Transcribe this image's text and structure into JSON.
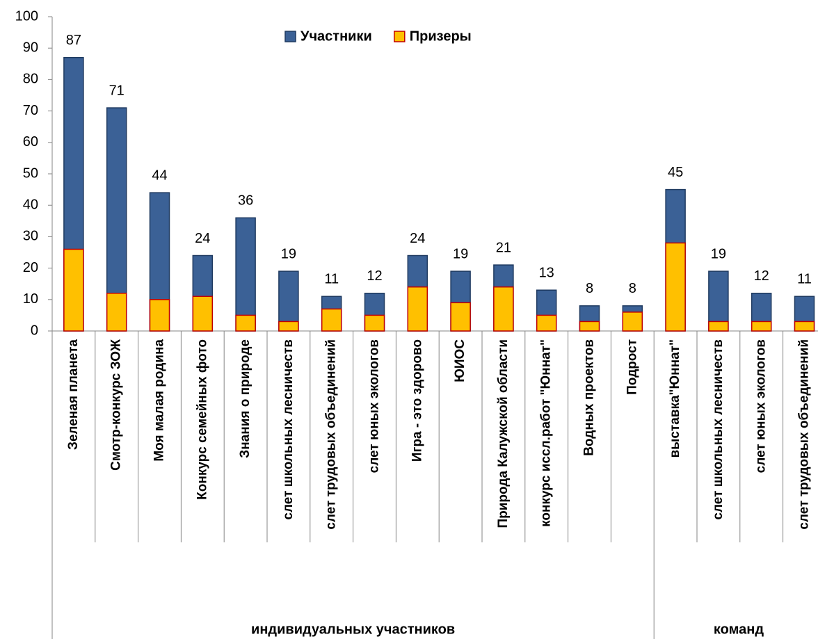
{
  "chart_data": {
    "type": "bar",
    "overlap": true,
    "groups": [
      {
        "name": "индивидуальных участников",
        "categories": [
          "Зеленая планета",
          "Смотр-конкурс ЗОЖ",
          "Моя малая родина",
          "Конкурс семейных фото",
          "Знания о природе",
          "слет школьных лесничеств",
          "слет трудовых объединений",
          "слет юных экологов",
          "Игра - это здорово",
          "ЮИОС",
          "Природа Калужской области",
          "конкурс иссл.работ \"Юннат\"",
          "Водных проектов",
          "Подрост"
        ]
      },
      {
        "name": "команд",
        "categories": [
          "выставка\"Юннат\"",
          "слет школьных лесничеств",
          "слет юных экологов",
          "слет трудовых объединений"
        ]
      }
    ],
    "series": [
      {
        "name": "Участники",
        "color": "#3b6196",
        "labels": true,
        "values": [
          87,
          71,
          44,
          24,
          36,
          19,
          11,
          12,
          24,
          19,
          21,
          13,
          8,
          8,
          45,
          19,
          12,
          11
        ]
      },
      {
        "name": "Призеры",
        "color": "#ffc000",
        "stroke": "#c00000",
        "values": [
          26,
          12,
          10,
          11,
          5,
          3,
          7,
          5,
          14,
          9,
          14,
          5,
          3,
          6,
          28,
          3,
          3,
          3
        ]
      }
    ],
    "ylim": [
      0,
      100
    ],
    "yticks": [
      0,
      10,
      20,
      30,
      40,
      50,
      60,
      70,
      80,
      90,
      100
    ],
    "legend": "top"
  }
}
